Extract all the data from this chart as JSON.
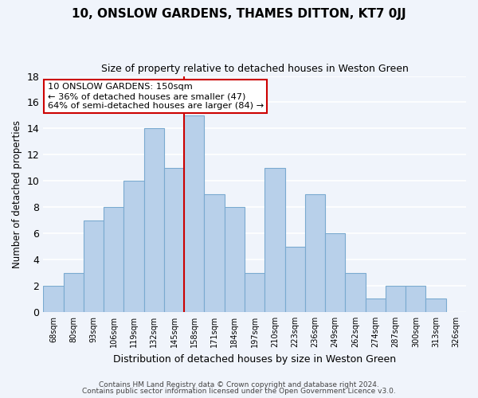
{
  "title": "10, ONSLOW GARDENS, THAMES DITTON, KT7 0JJ",
  "subtitle": "Size of property relative to detached houses in Weston Green",
  "xlabel": "Distribution of detached houses by size in Weston Green",
  "ylabel": "Number of detached properties",
  "footer_line1": "Contains HM Land Registry data © Crown copyright and database right 2024.",
  "footer_line2": "Contains public sector information licensed under the Open Government Licence v3.0.",
  "bin_labels": [
    "68sqm",
    "80sqm",
    "93sqm",
    "106sqm",
    "119sqm",
    "132sqm",
    "145sqm",
    "158sqm",
    "171sqm",
    "184sqm",
    "197sqm",
    "210sqm",
    "223sqm",
    "236sqm",
    "249sqm",
    "262sqm",
    "274sqm",
    "287sqm",
    "300sqm",
    "313sqm",
    "326sqm"
  ],
  "bar_values": [
    2,
    3,
    7,
    8,
    10,
    14,
    11,
    15,
    9,
    8,
    3,
    11,
    5,
    9,
    6,
    3,
    1,
    2,
    2,
    1,
    0
  ],
  "bar_color": "#b8d0ea",
  "bar_edge_color": "#7aaad0",
  "vline_color": "#cc0000",
  "annotation_title": "10 ONSLOW GARDENS: 150sqm",
  "annotation_line1": "← 36% of detached houses are smaller (47)",
  "annotation_line2": "64% of semi-detached houses are larger (84) →",
  "annotation_box_facecolor": "#ffffff",
  "annotation_box_edgecolor": "#cc0000",
  "bg_color": "#f0f4fb",
  "ylim": [
    0,
    18
  ],
  "yticks": [
    0,
    2,
    4,
    6,
    8,
    10,
    12,
    14,
    16,
    18
  ]
}
